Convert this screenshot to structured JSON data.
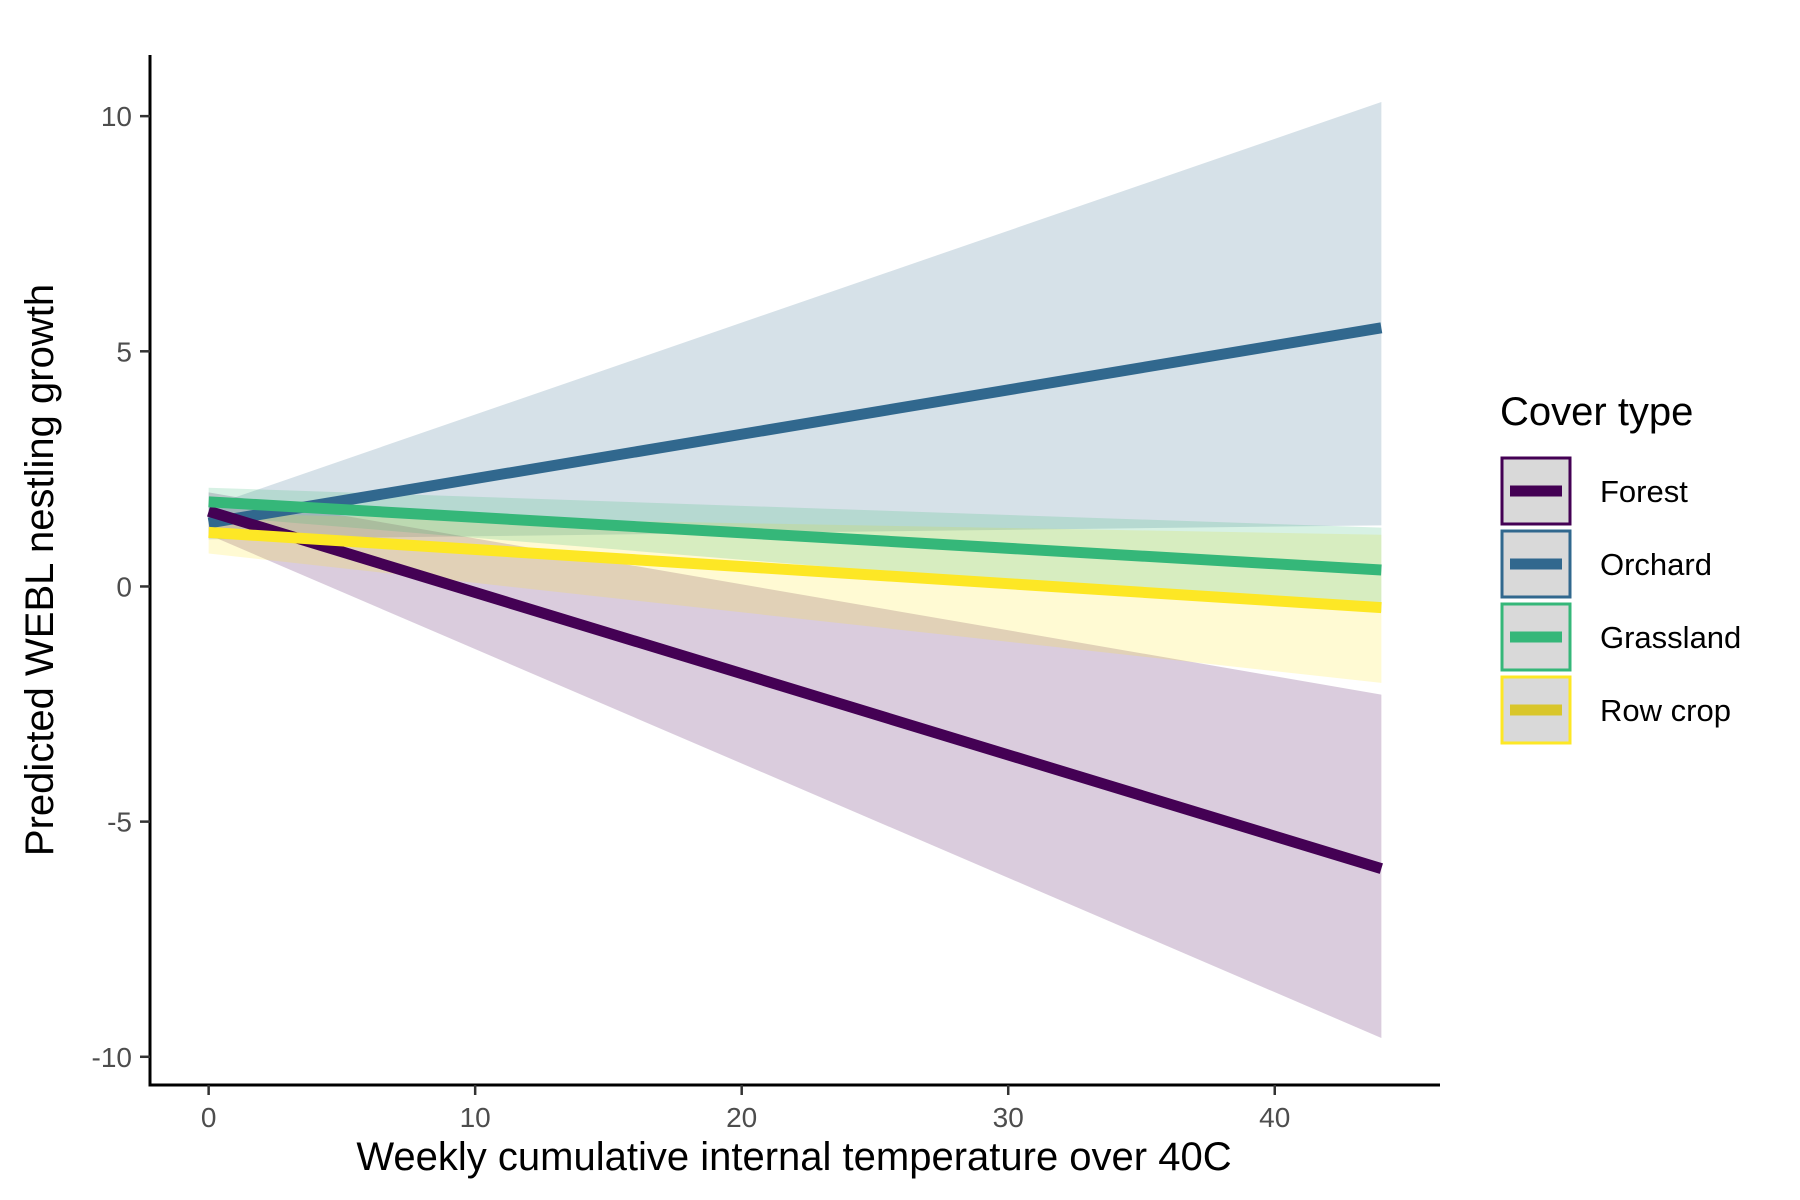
{
  "chart_data": {
    "type": "line",
    "title": "",
    "xlabel": "Weekly cumulative internal temperature over 40C",
    "ylabel": "Predicted WEBL nestling growth",
    "xlim": [
      -2.2,
      46.2
    ],
    "ylim": [
      -10.6,
      11.3
    ],
    "x_ticks": [
      0,
      10,
      20,
      30,
      40
    ],
    "x_tick_labels": [
      "0",
      "10",
      "20",
      "30",
      "40"
    ],
    "y_ticks": [
      -10,
      -5,
      0,
      5,
      10
    ],
    "y_tick_labels": [
      "-10",
      "-5",
      "0",
      "5",
      "10"
    ],
    "grid": false,
    "legend": {
      "title": "Cover type",
      "position": "right",
      "entries": [
        "Forest",
        "Orchard",
        "Grassland",
        "Row crop"
      ]
    },
    "series": [
      {
        "name": "Orchard",
        "color": "#31688e",
        "ribbon_color": "#31688e",
        "ribbon_opacity": 0.2,
        "x": [
          0,
          44
        ],
        "y": [
          1.35,
          5.5
        ],
        "ci_lower": [
          1.0,
          1.3
        ],
        "ci_upper": [
          1.7,
          10.3
        ]
      },
      {
        "name": "Forest",
        "color": "#440154",
        "ribbon_color": "#440154",
        "ribbon_opacity": 0.2,
        "x": [
          0,
          44
        ],
        "y": [
          1.6,
          -6.0
        ],
        "ci_lower": [
          1.1,
          -9.6
        ],
        "ci_upper": [
          2.0,
          -2.3
        ]
      },
      {
        "name": "Row crop",
        "color": "#fde725",
        "ribbon_color": "#fde725",
        "ribbon_opacity": 0.2,
        "x": [
          0,
          44
        ],
        "y": [
          1.15,
          -0.45
        ],
        "ci_lower": [
          0.7,
          -2.05
        ],
        "ci_upper": [
          1.55,
          1.1
        ]
      },
      {
        "name": "Grassland",
        "color": "#35b779",
        "ribbon_color": "#35b779",
        "ribbon_opacity": 0.2,
        "x": [
          0,
          44
        ],
        "y": [
          1.8,
          0.35
        ],
        "ci_lower": [
          1.5,
          -0.55
        ],
        "ci_upper": [
          2.1,
          1.25
        ]
      }
    ],
    "legend_key_colors": {
      "Forest": {
        "line": "#440154",
        "border": "#440154"
      },
      "Orchard": {
        "line": "#31688e",
        "border": "#31688e"
      },
      "Grassland": {
        "line": "#35b779",
        "border": "#35b779"
      },
      "Row crop": {
        "line": "#d9c62a",
        "border": "#fde725"
      }
    }
  }
}
